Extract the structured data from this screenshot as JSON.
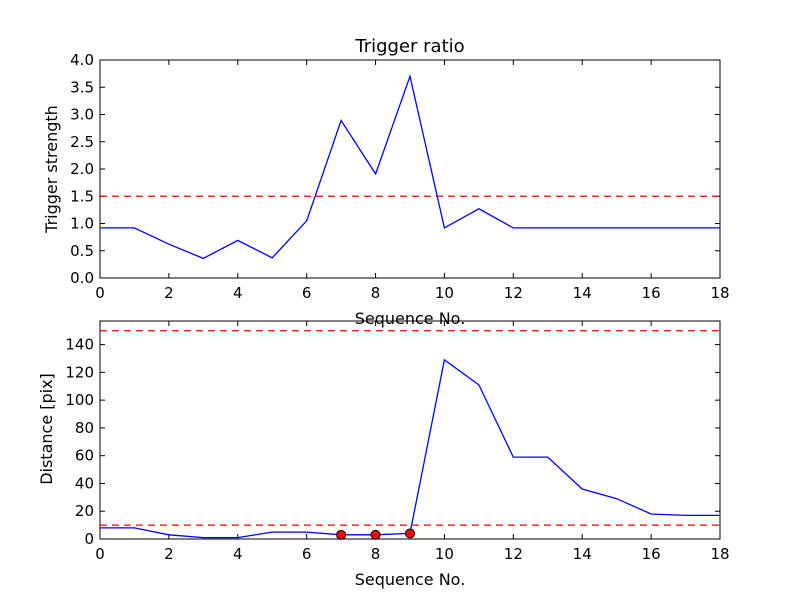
{
  "chart_data": [
    {
      "type": "line",
      "title": "Trigger ratio",
      "xlabel": "Sequence No.",
      "ylabel": "Trigger strength",
      "xlim": [
        0,
        18
      ],
      "ylim": [
        0,
        4.0
      ],
      "x_ticks": [
        "0",
        "2",
        "4",
        "6",
        "8",
        "10",
        "12",
        "14",
        "16",
        "18"
      ],
      "y_ticks": [
        "0.0",
        "0.5",
        "1.0",
        "1.5",
        "2.0",
        "2.5",
        "3.0",
        "3.5",
        "4.0"
      ],
      "x_tick_values": [
        0,
        2,
        4,
        6,
        8,
        10,
        12,
        14,
        16,
        18
      ],
      "y_tick_values": [
        0,
        0.5,
        1.0,
        1.5,
        2.0,
        2.5,
        3.0,
        3.5,
        4.0
      ],
      "series": [
        {
          "x": [
            0,
            1,
            2,
            3,
            4,
            5,
            6,
            7,
            8,
            9,
            10,
            11,
            12,
            13,
            14,
            15,
            16,
            17,
            18
          ],
          "values": [
            0.92,
            0.92,
            0.62,
            0.36,
            0.69,
            0.37,
            1.05,
            2.89,
            1.91,
            3.7,
            0.92,
            1.27,
            0.92,
            0.92,
            0.92,
            0.92,
            0.92,
            0.92,
            0.92
          ],
          "color": "#0000ff"
        }
      ],
      "thresholds": [
        {
          "value": 1.5,
          "color": "#ff0000"
        }
      ],
      "markers": [],
      "grid": false
    },
    {
      "type": "line",
      "title": "",
      "xlabel": "Sequence No.",
      "ylabel": "Distance [pix]",
      "xlim": [
        0,
        18
      ],
      "ylim": [
        0,
        157
      ],
      "x_ticks": [
        "0",
        "2",
        "4",
        "6",
        "8",
        "10",
        "12",
        "14",
        "16",
        "18"
      ],
      "y_ticks": [
        "0",
        "20",
        "40",
        "60",
        "80",
        "100",
        "120",
        "140"
      ],
      "x_tick_values": [
        0,
        2,
        4,
        6,
        8,
        10,
        12,
        14,
        16,
        18
      ],
      "y_tick_values": [
        0,
        20,
        40,
        60,
        80,
        100,
        120,
        140
      ],
      "series": [
        {
          "x": [
            0,
            1,
            2,
            3,
            4,
            5,
            6,
            7,
            8,
            9,
            10,
            11,
            12,
            13,
            14,
            15,
            16,
            17,
            18
          ],
          "values": [
            8,
            8,
            3,
            1,
            1,
            5,
            5,
            3,
            3,
            4,
            129,
            111,
            59,
            59,
            36,
            29,
            18,
            17,
            17
          ],
          "color": "#0000ff"
        }
      ],
      "thresholds": [
        {
          "value": 150,
          "color": "#ff0000"
        },
        {
          "value": 10,
          "color": "#ff0000"
        }
      ],
      "markers": [
        {
          "x": 7,
          "y": 3
        },
        {
          "x": 8,
          "y": 3
        },
        {
          "x": 9,
          "y": 4
        }
      ],
      "marker_color": "#ff0000",
      "grid": false
    }
  ]
}
